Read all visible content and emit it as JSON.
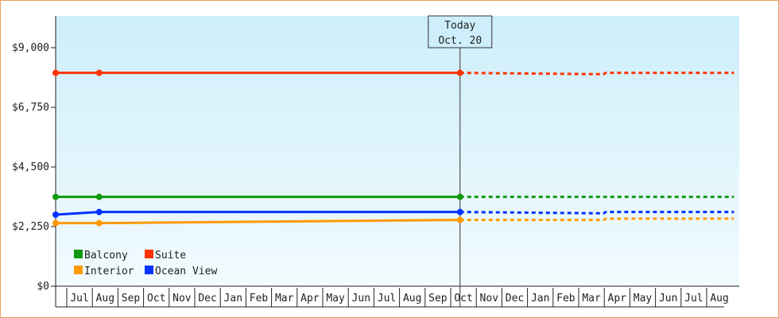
{
  "chart_data": {
    "type": "line",
    "y_tick_labels": [
      "$0",
      "$2,250",
      "$4,500",
      "$6,750",
      "$9,000"
    ],
    "y_ticks": [
      0,
      2250,
      4500,
      6750,
      9000
    ],
    "ylim": [
      0,
      10200
    ],
    "x_tick_labels": [
      "Jul",
      "Aug",
      "Sep",
      "Oct",
      "Nov",
      "Dec",
      "Jan",
      "Feb",
      "Mar",
      "Apr",
      "May",
      "Jun",
      "Jul",
      "Aug",
      "Sep",
      "Oct",
      "Nov",
      "Dec",
      "Jan",
      "Feb",
      "Mar",
      "Apr",
      "May",
      "Jun",
      "Jul",
      "Aug"
    ],
    "today_label_line1": "Today",
    "today_label_line2": "Oct. 20",
    "today_index": 15.8,
    "plot_background": [
      "#cdeefa",
      "#f2fbfe"
    ],
    "series": [
      {
        "name": "Suite",
        "color": "#ff3300",
        "x": [
          0,
          1.7,
          15.8
        ],
        "values": [
          8050,
          8050,
          8050
        ],
        "forecast": [
          [
            15.8,
            8050
          ],
          [
            21.4,
            8000
          ],
          [
            21.5,
            8050
          ],
          [
            26.5,
            8050
          ]
        ]
      },
      {
        "name": "Balcony",
        "color": "#119911",
        "x": [
          0,
          1.7,
          15.8
        ],
        "values": [
          3370,
          3370,
          3370
        ],
        "forecast": [
          [
            15.8,
            3370
          ],
          [
            26.5,
            3370
          ]
        ]
      },
      {
        "name": "Ocean View",
        "color": "#0033ff",
        "x": [
          0,
          1.7,
          15.8
        ],
        "values": [
          2700,
          2800,
          2800
        ],
        "forecast": [
          [
            15.8,
            2800
          ],
          [
            21.4,
            2750
          ],
          [
            21.5,
            2800
          ],
          [
            26.5,
            2800
          ]
        ]
      },
      {
        "name": "Interior",
        "color": "#ff9900",
        "x": [
          0,
          1.7,
          15.8
        ],
        "values": [
          2380,
          2380,
          2500
        ],
        "forecast": [
          [
            15.8,
            2500
          ],
          [
            21.4,
            2500
          ],
          [
            21.5,
            2550
          ],
          [
            26.5,
            2550
          ]
        ]
      }
    ],
    "legend_order": [
      "Balcony",
      "Suite",
      "Interior",
      "Ocean View"
    ],
    "legend_placement": "bottom-left",
    "grid": false
  }
}
